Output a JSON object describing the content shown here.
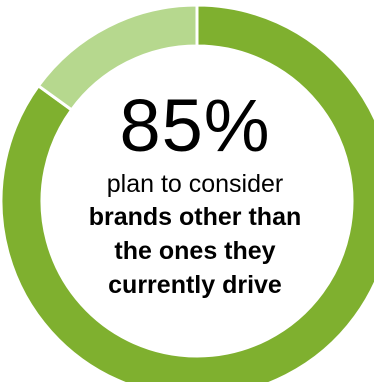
{
  "chart_data": {
    "type": "pie",
    "variant": "donut",
    "title": "",
    "slices": [
      {
        "label": "",
        "value": 85,
        "color": "#7fb02f"
      },
      {
        "label": "",
        "value": 15,
        "color": "#b6d88e"
      }
    ],
    "center": {
      "value_text": "85%",
      "caption_regular": "plan to consider",
      "caption_bold_lines": [
        "brands other than",
        "the ones they",
        "currently drive"
      ]
    }
  }
}
